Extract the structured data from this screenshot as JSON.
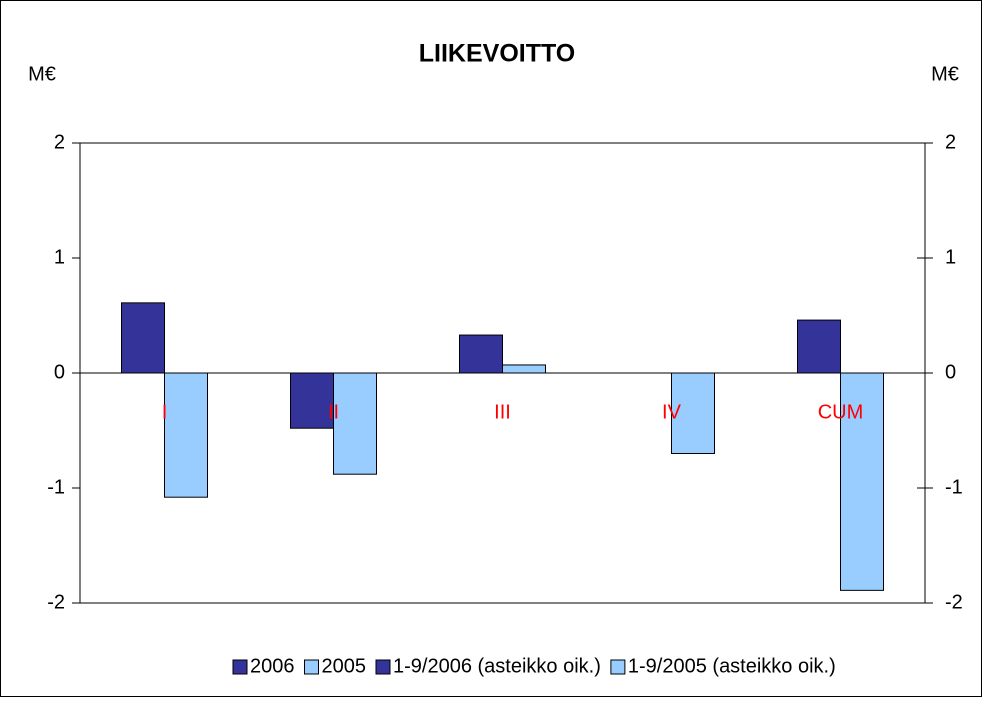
{
  "chart_data": {
    "type": "bar",
    "title": "LIIKEVOITTO",
    "y_label": "M€",
    "y2_label": "M€",
    "categories": [
      "I",
      "II",
      "III",
      "IV",
      "CUM"
    ],
    "series": [
      {
        "name": "2006",
        "color": "#333399",
        "values": [
          0.61,
          -0.48,
          0.33,
          null,
          null
        ]
      },
      {
        "name": "2005",
        "color": "#99ccff",
        "values": [
          -1.08,
          -0.88,
          0.07,
          -0.7,
          null
        ]
      },
      {
        "name": "1-9/2006 (asteikko oik.)",
        "color": "#333399",
        "axis": "y2",
        "values": [
          null,
          null,
          null,
          null,
          0.46
        ]
      },
      {
        "name": "1-9/2005 (asteikko oik.)",
        "color": "#99ccff",
        "axis": "y2",
        "values": [
          null,
          null,
          null,
          null,
          -1.89
        ]
      }
    ],
    "ylim": [
      -2,
      2
    ],
    "yticks": [
      -2,
      -1,
      0,
      1,
      2
    ],
    "y2lim": [
      -2,
      2
    ],
    "y2ticks": [
      -2,
      -1,
      0,
      1,
      2
    ],
    "category_color": "#ff0000",
    "legend": "bottom"
  }
}
